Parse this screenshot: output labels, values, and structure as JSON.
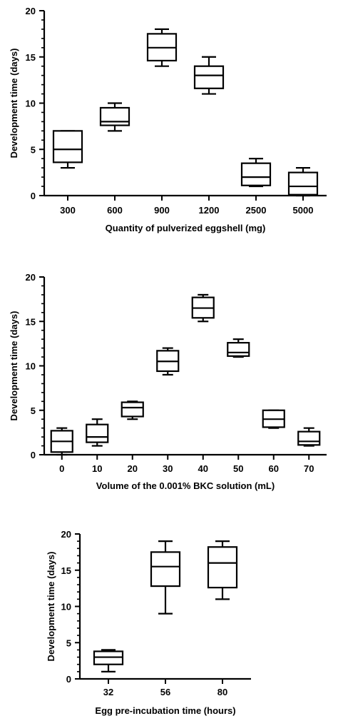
{
  "chart_data": [
    {
      "type": "box",
      "xlabel": "Quantity of pulverized eggshell (mg)",
      "ylabel": "Development time (days)",
      "ylim": [
        0,
        20
      ],
      "yticks": [
        0,
        5,
        10,
        15,
        20
      ],
      "categories": [
        "300",
        "600",
        "900",
        "1200",
        "2500",
        "5000"
      ],
      "boxes": [
        {
          "min": 3,
          "q1": 3.6,
          "median": 5,
          "q3": 7,
          "max": 7
        },
        {
          "min": 7,
          "q1": 7.6,
          "median": 8,
          "q3": 9.5,
          "max": 10
        },
        {
          "min": 14,
          "q1": 14.6,
          "median": 16,
          "q3": 17.5,
          "max": 18
        },
        {
          "min": 11,
          "q1": 11.6,
          "median": 13,
          "q3": 14,
          "max": 15
        },
        {
          "min": 1,
          "q1": 1.1,
          "median": 2,
          "q3": 3.5,
          "max": 4
        },
        {
          "min": 0,
          "q1": 0.1,
          "median": 1,
          "q3": 2.5,
          "max": 3
        }
      ]
    },
    {
      "type": "box",
      "xlabel": "Volume of the 0.001% BKC solution (mL)",
      "ylabel": "Development time (days)",
      "ylim": [
        0,
        20
      ],
      "yticks": [
        0,
        5,
        10,
        15,
        20
      ],
      "categories": [
        "0",
        "10",
        "20",
        "30",
        "40",
        "50",
        "60",
        "70"
      ],
      "boxes": [
        {
          "min": 0,
          "q1": 0.3,
          "median": 1.5,
          "q3": 2.7,
          "max": 3
        },
        {
          "min": 1,
          "q1": 1.4,
          "median": 2,
          "q3": 3.4,
          "max": 4
        },
        {
          "min": 4,
          "q1": 4.3,
          "median": 5.3,
          "q3": 5.9,
          "max": 6
        },
        {
          "min": 9,
          "q1": 9.4,
          "median": 10.5,
          "q3": 11.7,
          "max": 12
        },
        {
          "min": 15,
          "q1": 15.4,
          "median": 16.5,
          "q3": 17.7,
          "max": 18
        },
        {
          "min": 11,
          "q1": 11.1,
          "median": 11.5,
          "q3": 12.6,
          "max": 13
        },
        {
          "min": 3,
          "q1": 3.1,
          "median": 4,
          "q3": 5,
          "max": 5
        },
        {
          "min": 1,
          "q1": 1.1,
          "median": 1.5,
          "q3": 2.6,
          "max": 3
        }
      ]
    },
    {
      "type": "box",
      "xlabel": "Egg pre-incubation time (hours)",
      "ylabel": "Development time (days)",
      "ylim": [
        0,
        20
      ],
      "yticks": [
        0,
        5,
        10,
        15,
        20
      ],
      "categories": [
        "32",
        "56",
        "80"
      ],
      "boxes": [
        {
          "min": 1,
          "q1": 2,
          "median": 3,
          "q3": 3.8,
          "max": 4
        },
        {
          "min": 9,
          "q1": 12.8,
          "median": 15.5,
          "q3": 17.5,
          "max": 19
        },
        {
          "min": 11,
          "q1": 12.6,
          "median": 16,
          "q3": 18.2,
          "max": 19
        }
      ]
    }
  ]
}
